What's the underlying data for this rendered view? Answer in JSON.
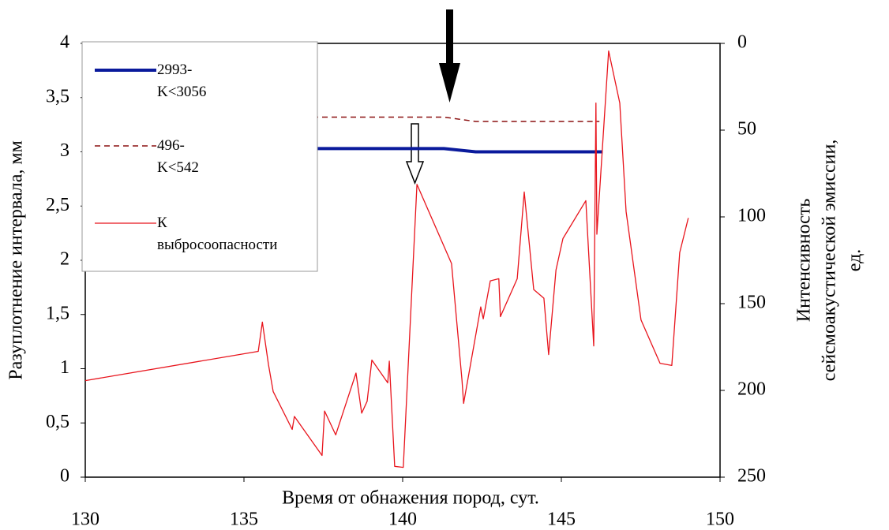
{
  "chart_data": {
    "type": "line",
    "xlabel": "Время от обнажения пород, сут.",
    "ylabel": "Разуплотнение интервала, мм",
    "y2label": [
      "Интенсивность",
      "сейсмоакустической эмиссии,",
      "ед."
    ],
    "xlim": [
      130,
      150
    ],
    "xticks": [
      130,
      135,
      140,
      145,
      150
    ],
    "ylim": [
      0,
      4
    ],
    "yticks": [
      0,
      {
        "value": 0.5,
        "label": "0,5"
      },
      1,
      {
        "value": 1.5,
        "label": "1,5"
      },
      2,
      {
        "value": 2.5,
        "label": "2,5"
      },
      3,
      {
        "value": 3.5,
        "label": "3,5"
      },
      4
    ],
    "y2lim": [
      0,
      250
    ],
    "y2ticks": [
      0,
      50,
      100,
      150,
      200,
      250
    ],
    "y2_inverted": true,
    "grid": false,
    "legend": "upper left",
    "series": [
      {
        "name": "2993-K<3056",
        "color": "#0a1a9c",
        "dash": "solid",
        "width": 4,
        "x": [
          130,
          141.3,
          142.3,
          146.3
        ],
        "values": [
          3.03,
          3.03,
          3.0,
          3.0
        ]
      },
      {
        "name": "496-K<542",
        "color": "#8b1010",
        "dash": "dashed",
        "width": 1.5,
        "x": [
          130,
          141.3,
          142.3,
          146.2
        ],
        "values": [
          3.32,
          3.32,
          3.28,
          3.28
        ]
      },
      {
        "name": "К выбросоопасности",
        "color": "#e8141c",
        "dash": "solid",
        "width": 1.3,
        "x": [
          130,
          135.45,
          135.58,
          135.77,
          135.92,
          136.52,
          136.59,
          137.46,
          137.54,
          137.89,
          138.53,
          138.71,
          138.88,
          139.03,
          139.53,
          139.58,
          139.75,
          140.02,
          140.45,
          141.54,
          141.87,
          141.92,
          142.46,
          142.54,
          142.76,
          143.03,
          143.08,
          143.61,
          143.83,
          144.13,
          144.45,
          144.6,
          144.83,
          145.05,
          145.77,
          146.02,
          146.09,
          146.12,
          146.49,
          146.84,
          147.04,
          147.51,
          148.11,
          148.48,
          148.73,
          149.0
        ],
        "values": [
          0.89,
          1.16,
          1.43,
          1.04,
          0.79,
          0.44,
          0.56,
          0.2,
          0.61,
          0.39,
          0.96,
          0.59,
          0.7,
          1.08,
          0.87,
          1.07,
          0.1,
          0.09,
          2.7,
          1.97,
          0.89,
          0.68,
          1.57,
          1.46,
          1.81,
          1.83,
          1.48,
          1.83,
          2.63,
          1.73,
          1.65,
          1.13,
          1.91,
          2.2,
          2.55,
          1.21,
          3.45,
          2.24,
          3.93,
          3.45,
          2.45,
          1.45,
          1.05,
          1.03,
          2.07,
          2.39
        ]
      }
    ]
  }
}
